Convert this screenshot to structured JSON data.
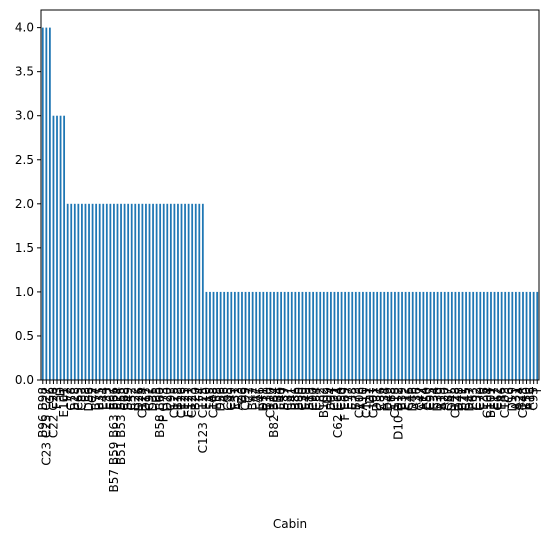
{
  "chart_data": {
    "type": "bar",
    "xlabel": "Cabin",
    "ylabel": "",
    "title": "",
    "ylim": [
      0,
      4.2
    ],
    "yticks": [
      "0.0",
      "0.5",
      "1.0",
      "1.5",
      "2.0",
      "2.5",
      "3.0",
      "3.5",
      "4.0"
    ],
    "bar_color": "#1f77b4",
    "grid": false,
    "categories": [
      "B96 B98",
      "C23 C25 C27",
      "G6",
      "C22 C26",
      "F33",
      "D",
      "E101",
      "F2",
      "C78",
      "B28",
      "C65",
      "C83",
      "E8",
      "D36",
      "C2",
      "B77",
      "B35",
      "E44",
      "E33",
      "E67",
      "B57 B59 B63 B66",
      "E24",
      "B51 B53 B55",
      "C68",
      "B49",
      "C52",
      "B22",
      "D26",
      "C124",
      "D17",
      "C92",
      "D35",
      "B5",
      "B58 B60",
      "F G73",
      "D20",
      "C93",
      "C125",
      "B18",
      "C126",
      "E25",
      "E121",
      "C123",
      "B20",
      "F4",
      "C123 C125",
      "E10",
      "A5",
      "C148",
      "E58",
      "D56",
      "A6",
      "C85",
      "C49",
      "E31",
      "A23",
      "D6",
      "C99",
      "C7",
      "B42",
      "A7",
      "E46",
      "D11",
      "B30",
      "C110",
      "B82 B84",
      "B4",
      "E40",
      "B37",
      "C87",
      "B41",
      "B86",
      "B80",
      "C30",
      "E49",
      "B19",
      "C90",
      "C54",
      "C82",
      "B102",
      "D9",
      "B94",
      "C91",
      "C62 C64",
      "C50",
      "F E69",
      "E77",
      "E38",
      "B73",
      "C106",
      "A10",
      "C111",
      "D7",
      "C101",
      "D37",
      "C86",
      "A34",
      "D49",
      "E68",
      "C118",
      "D10 D12",
      "B39",
      "E12",
      "C46",
      "D46",
      "A36",
      "C47",
      "A14",
      "E50",
      "C95",
      "E34",
      "D30",
      "A19",
      "A20",
      "C87",
      "D45",
      "C128",
      "D48",
      "B71",
      "C45",
      "D47",
      "E63",
      "C32",
      "C70",
      "E36",
      "C104",
      "B101",
      "E17",
      "C62",
      "E46",
      "C103",
      "C6",
      "D19",
      "A31",
      "A24",
      "C148",
      "B50",
      "A16",
      "C95",
      "T"
    ],
    "values": [
      4,
      4,
      4,
      3,
      3,
      3,
      3,
      2,
      2,
      2,
      2,
      2,
      2,
      2,
      2,
      2,
      2,
      2,
      2,
      2,
      2,
      2,
      2,
      2,
      2,
      2,
      2,
      2,
      2,
      2,
      2,
      2,
      2,
      2,
      2,
      2,
      2,
      2,
      2,
      2,
      2,
      2,
      2,
      2,
      2,
      2,
      1,
      1,
      1,
      1,
      1,
      1,
      1,
      1,
      1,
      1,
      1,
      1,
      1,
      1,
      1,
      1,
      1,
      1,
      1,
      1,
      1,
      1,
      1,
      1,
      1,
      1,
      1,
      1,
      1,
      1,
      1,
      1,
      1,
      1,
      1,
      1,
      1,
      1,
      1,
      1,
      1,
      1,
      1,
      1,
      1,
      1,
      1,
      1,
      1,
      1,
      1,
      1,
      1,
      1,
      1,
      1,
      1,
      1,
      1,
      1,
      1,
      1,
      1,
      1,
      1,
      1,
      1,
      1,
      1,
      1,
      1,
      1,
      1,
      1,
      1,
      1,
      1,
      1,
      1,
      1,
      1,
      1,
      1,
      1,
      1,
      1,
      1,
      1,
      1,
      1,
      1,
      1,
      1,
      1
    ]
  }
}
